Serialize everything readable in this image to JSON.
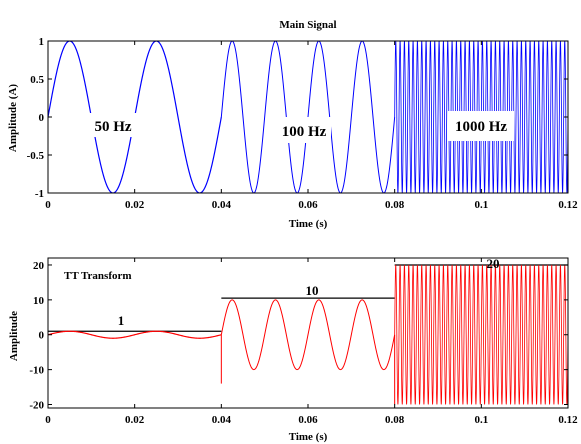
{
  "chart_data": [
    {
      "type": "line",
      "title": "Main Signal",
      "xlabel": "Time (s)",
      "ylabel": "Amplitude (A)",
      "xlim": [
        0,
        0.12
      ],
      "ylim": [
        -1,
        1
      ],
      "xticks": [
        "0",
        "0.02",
        "0.04",
        "0.06",
        "0.08",
        "0.1",
        "0.12"
      ],
      "yticks": [
        "1",
        "0.5",
        "0",
        "-0.5",
        "-1"
      ],
      "grid": false,
      "color": "#0000ff",
      "series": [
        {
          "amplitude": 1,
          "frequency_hz": 50,
          "x_range": [
            0,
            0.04
          ]
        },
        {
          "amplitude": 1,
          "frequency_hz": 100,
          "x_range": [
            0.04,
            0.08
          ]
        },
        {
          "amplitude": 1,
          "frequency_hz": 1000,
          "x_range": [
            0.08,
            0.12
          ]
        }
      ],
      "annotations": [
        "50 Hz",
        "100 Hz",
        "1000 Hz"
      ]
    },
    {
      "type": "line",
      "title": "TT Transform",
      "xlabel": "Time (s)",
      "ylabel": "Amplitude",
      "xlim": [
        0,
        0.12
      ],
      "ylim": [
        -21,
        22
      ],
      "xticks": [
        "0",
        "0.02",
        "0.04",
        "0.06",
        "0.08",
        "0.1",
        "0.12"
      ],
      "yticks": [
        "20",
        "10",
        "0",
        "-10",
        "-20"
      ],
      "grid": false,
      "color": "#ff0000",
      "series": [
        {
          "amplitude": 1,
          "frequency_hz": 50,
          "x_range": [
            0,
            0.04
          ]
        },
        {
          "amplitude": 10,
          "frequency_hz": 100,
          "x_range": [
            0.04,
            0.08
          ]
        },
        {
          "amplitude": 20,
          "frequency_hz": 1000,
          "x_range": [
            0.08,
            0.12
          ]
        }
      ],
      "annotations": [
        "1",
        "10",
        "20"
      ],
      "level_lines": [
        1,
        10.5,
        20
      ]
    }
  ]
}
